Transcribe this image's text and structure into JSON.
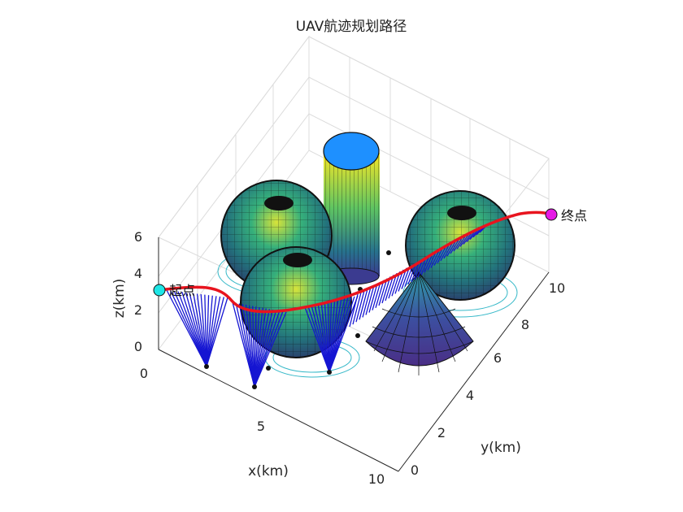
{
  "chart_data": {
    "type": "surface3d",
    "title": "UAV航迹规划路径",
    "xlabel": "x(km)",
    "ylabel": "y(km)",
    "zlabel": "z(km)",
    "xlim": [
      0,
      10
    ],
    "ylim": [
      0,
      11
    ],
    "zlim": [
      0,
      6
    ],
    "x_ticks": [
      "0",
      "5",
      "10"
    ],
    "y_ticks": [
      "0",
      "2",
      "4",
      "6",
      "8",
      "10"
    ],
    "z_ticks": [
      "0",
      "2",
      "4",
      "6"
    ],
    "grid": true,
    "start_label": "起点",
    "end_label": "终点",
    "start_point": [
      0,
      0,
      3
    ],
    "end_point": [
      10,
      10,
      4
    ],
    "obstacles": [
      {
        "kind": "sphere",
        "center": [
          2.5,
          5.5,
          3.5
        ],
        "radius": 2
      },
      {
        "kind": "sphere",
        "center": [
          5,
          3.5,
          2.5
        ],
        "radius": 2
      },
      {
        "kind": "sphere",
        "center": [
          7.5,
          7.5,
          3
        ],
        "radius": 2
      },
      {
        "kind": "cylinder",
        "center": [
          4,
          6.5
        ],
        "radius": 1,
        "height": 6
      },
      {
        "kind": "cone",
        "center": [
          7.5,
          4.5
        ],
        "radius": 2,
        "height": 4
      }
    ],
    "path": {
      "color": "#e8141e",
      "x": [
        0,
        0.8,
        1.8,
        2.8,
        3.8,
        4.8,
        5.8,
        6.8,
        7.6,
        8.4,
        9.2,
        10
      ],
      "y": [
        0,
        0.8,
        1.8,
        2.9,
        4.0,
        5.0,
        6.0,
        7.2,
        8.2,
        9.0,
        9.6,
        10
      ],
      "z": [
        3,
        2.4,
        2.3,
        2.5,
        2.9,
        3.3,
        3.7,
        4.0,
        4.1,
        4.1,
        4.0,
        4.0
      ]
    },
    "colors": {
      "sphere_low": "#3c3c8c",
      "sphere_high": "#e6e036",
      "cylinder_top": "#1e90ff",
      "start_marker": "#1ee6e6",
      "end_marker": "#e619e6",
      "sensor_lines": "#1515d2"
    }
  }
}
